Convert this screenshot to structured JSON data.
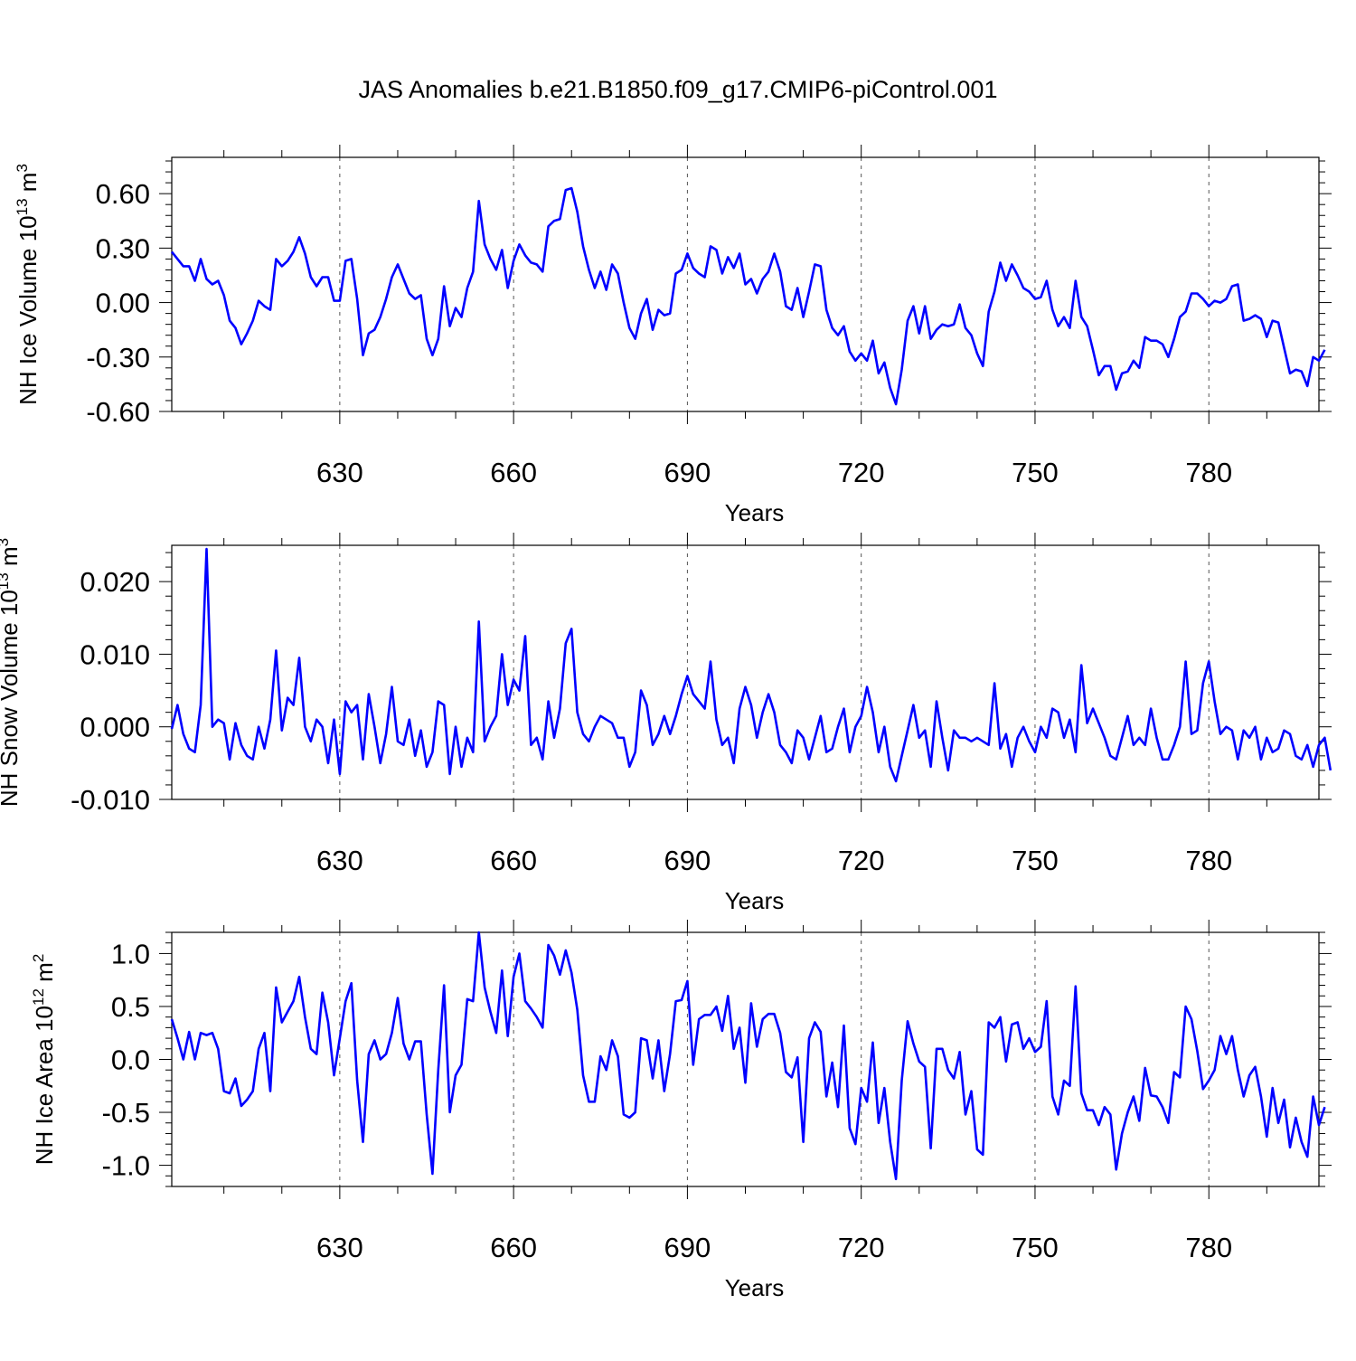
{
  "title": "JAS Anomalies b.e21.B1850.f09_g17.CMIP6-piControl.001",
  "colors": {
    "line": "#0000ff",
    "axis": "#000000",
    "grid": "#555555"
  },
  "chart_data": [
    {
      "type": "line",
      "ylabel_main": "NH Ice Volume 10",
      "ylabel_exp": "13",
      "ylabel_unit": "m",
      "ylabel_unit_exp": "3",
      "xlabel": "Years",
      "xlim": [
        601,
        799
      ],
      "ylim": [
        -0.6,
        0.8
      ],
      "yticks": [
        -0.6,
        -0.3,
        0.0,
        0.3,
        0.6
      ],
      "yticklabels": [
        "-0.60",
        "-0.30",
        "0.00",
        "0.30",
        "0.60"
      ],
      "xticks": [
        630,
        660,
        690,
        720,
        750,
        780
      ],
      "xticklabels": [
        "630",
        "660",
        "690",
        "720",
        "750",
        "780"
      ],
      "x_start": 601,
      "values": [
        0.28,
        0.24,
        0.2,
        0.2,
        0.12,
        0.24,
        0.13,
        0.1,
        0.12,
        0.04,
        -0.1,
        -0.14,
        -0.23,
        -0.17,
        -0.1,
        0.01,
        -0.02,
        -0.04,
        0.24,
        0.2,
        0.23,
        0.28,
        0.36,
        0.27,
        0.14,
        0.09,
        0.14,
        0.14,
        0.01,
        0.01,
        0.23,
        0.24,
        0.02,
        -0.29,
        -0.17,
        -0.15,
        -0.08,
        0.02,
        0.14,
        0.21,
        0.13,
        0.05,
        0.02,
        0.04,
        -0.2,
        -0.29,
        -0.2,
        0.09,
        -0.13,
        -0.03,
        -0.08,
        0.08,
        0.17,
        0.56,
        0.32,
        0.24,
        0.18,
        0.29,
        0.08,
        0.23,
        0.32,
        0.26,
        0.22,
        0.21,
        0.17,
        0.42,
        0.45,
        0.46,
        0.62,
        0.63,
        0.5,
        0.31,
        0.18,
        0.08,
        0.17,
        0.07,
        0.21,
        0.16,
        0.0,
        -0.14,
        -0.2,
        -0.06,
        0.02,
        -0.15,
        -0.04,
        -0.07,
        -0.06,
        0.16,
        0.18,
        0.27,
        0.19,
        0.16,
        0.14,
        0.31,
        0.29,
        0.16,
        0.25,
        0.19,
        0.27,
        0.1,
        0.13,
        0.05,
        0.13,
        0.17,
        0.27,
        0.17,
        -0.02,
        -0.04,
        0.08,
        -0.08,
        0.06,
        0.21,
        0.2,
        -0.04,
        -0.14,
        -0.18,
        -0.13,
        -0.27,
        -0.32,
        -0.28,
        -0.32,
        -0.21,
        -0.39,
        -0.33,
        -0.47,
        -0.56,
        -0.37,
        -0.1,
        -0.02,
        -0.17,
        -0.02,
        -0.2,
        -0.15,
        -0.12,
        -0.13,
        -0.12,
        -0.01,
        -0.14,
        -0.18,
        -0.28,
        -0.35,
        -0.05,
        0.06,
        0.22,
        0.12,
        0.21,
        0.15,
        0.08,
        0.06,
        0.02,
        0.03,
        0.12,
        -0.04,
        -0.13,
        -0.08,
        -0.14,
        0.12,
        -0.08,
        -0.13,
        -0.26,
        -0.4,
        -0.35,
        -0.35,
        -0.48,
        -0.39,
        -0.38,
        -0.32,
        -0.36,
        -0.19,
        -0.21,
        -0.21,
        -0.23,
        -0.3,
        -0.2,
        -0.08,
        -0.05,
        0.05,
        0.05,
        0.02,
        -0.02,
        0.01,
        0.0,
        0.02,
        0.09,
        0.1,
        -0.1,
        -0.09,
        -0.07,
        -0.09,
        -0.19,
        -0.1,
        -0.11,
        -0.25,
        -0.39,
        -0.37,
        -0.38,
        -0.46,
        -0.3,
        -0.32,
        -0.26
      ]
    },
    {
      "type": "line",
      "ylabel_main": "NH Snow Volume 10",
      "ylabel_exp": "13",
      "ylabel_unit": "m",
      "ylabel_unit_exp": "3",
      "xlabel": "Years",
      "xlim": [
        601,
        799
      ],
      "ylim": [
        -0.01,
        0.025
      ],
      "yticks": [
        -0.01,
        0.0,
        0.01,
        0.02
      ],
      "yticklabels": [
        "-0.010",
        "0.000",
        "0.010",
        "0.020"
      ],
      "xticks": [
        630,
        660,
        690,
        720,
        750,
        780
      ],
      "xticklabels": [
        "630",
        "660",
        "690",
        "720",
        "750",
        "780"
      ],
      "x_start": 601,
      "values": [
        -0.0003,
        0.003,
        -0.001,
        -0.003,
        -0.0035,
        0.003,
        0.0245,
        0.0,
        0.001,
        0.0005,
        -0.0045,
        0.0005,
        -0.0025,
        -0.004,
        -0.0045,
        0.0,
        -0.003,
        0.001,
        0.0105,
        -0.0005,
        0.004,
        0.003,
        0.0095,
        0.0,
        -0.002,
        0.001,
        0.0,
        -0.005,
        0.001,
        -0.0065,
        0.0035,
        0.002,
        0.003,
        -0.0045,
        0.0045,
        0.0,
        -0.005,
        -0.001,
        0.0055,
        -0.002,
        -0.0025,
        0.001,
        -0.004,
        -0.0005,
        -0.0055,
        -0.0035,
        0.0035,
        0.003,
        -0.0065,
        0.0,
        -0.0055,
        -0.0015,
        -0.0035,
        0.0145,
        -0.002,
        0.0,
        0.0015,
        0.01,
        0.003,
        0.0065,
        0.005,
        0.0125,
        -0.0025,
        -0.0015,
        -0.0045,
        0.0035,
        -0.0015,
        0.0025,
        0.0115,
        0.0135,
        0.002,
        -0.001,
        -0.002,
        0.0,
        0.0015,
        0.001,
        0.0005,
        -0.0015,
        -0.0015,
        -0.0055,
        -0.0035,
        0.005,
        0.003,
        -0.0025,
        -0.001,
        0.0015,
        -0.001,
        0.0015,
        0.0045,
        0.007,
        0.0045,
        0.0035,
        0.0025,
        0.009,
        0.001,
        -0.0025,
        -0.0015,
        -0.005,
        0.0025,
        0.0055,
        0.003,
        -0.0015,
        0.002,
        0.0045,
        0.002,
        -0.0025,
        -0.0035,
        -0.005,
        -0.0005,
        -0.0015,
        -0.0045,
        -0.0015,
        0.0015,
        -0.0035,
        -0.003,
        0.0,
        0.0025,
        -0.0035,
        0.0,
        0.0015,
        0.0055,
        0.002,
        -0.0035,
        0.0,
        -0.0055,
        -0.0075,
        -0.004,
        -0.0005,
        0.003,
        -0.0015,
        -0.0005,
        -0.0055,
        0.0035,
        -0.0015,
        -0.006,
        -0.0005,
        -0.0015,
        -0.0015,
        -0.002,
        -0.0015,
        -0.002,
        -0.0025,
        0.006,
        -0.003,
        -0.001,
        -0.0055,
        -0.0015,
        0.0,
        -0.002,
        -0.0035,
        0.0,
        -0.0015,
        0.0025,
        0.002,
        -0.0015,
        0.001,
        -0.0035,
        0.0085,
        0.0005,
        0.0025,
        0.0005,
        -0.0015,
        -0.004,
        -0.0045,
        -0.0015,
        0.0015,
        -0.0025,
        -0.0015,
        -0.0025,
        0.0025,
        -0.0015,
        -0.0045,
        -0.0045,
        -0.0025,
        0.0,
        0.009,
        -0.001,
        -0.0005,
        0.006,
        0.009,
        0.0035,
        -0.001,
        0.0,
        -0.0005,
        -0.0045,
        -0.0005,
        -0.0015,
        0.0,
        -0.0045,
        -0.0015,
        -0.0035,
        -0.003,
        -0.0005,
        -0.001,
        -0.004,
        -0.0045,
        -0.0025,
        -0.0055,
        -0.0025,
        -0.0015,
        -0.006
      ]
    },
    {
      "type": "line",
      "ylabel_main": "NH Ice Area 10",
      "ylabel_exp": "12",
      "ylabel_unit": "m",
      "ylabel_unit_exp": "2",
      "xlabel": "Years",
      "xlim": [
        601,
        799
      ],
      "ylim": [
        -1.2,
        1.2
      ],
      "yticks": [
        -1.0,
        -0.5,
        0.0,
        0.5,
        1.0
      ],
      "yticklabels": [
        "-1.0",
        "-0.5",
        "0.0",
        "0.5",
        "1.0"
      ],
      "xticks": [
        630,
        660,
        690,
        720,
        750,
        780
      ],
      "xticklabels": [
        "630",
        "660",
        "690",
        "720",
        "750",
        "780"
      ],
      "x_start": 601,
      "values": [
        0.38,
        0.2,
        0.0,
        0.26,
        0.0,
        0.25,
        0.23,
        0.25,
        0.1,
        -0.3,
        -0.32,
        -0.18,
        -0.44,
        -0.38,
        -0.3,
        0.1,
        0.25,
        -0.3,
        0.68,
        0.35,
        0.45,
        0.55,
        0.78,
        0.4,
        0.1,
        0.05,
        0.63,
        0.35,
        -0.15,
        0.2,
        0.55,
        0.72,
        -0.2,
        -0.78,
        0.05,
        0.18,
        0.0,
        0.05,
        0.25,
        0.58,
        0.15,
        0.0,
        0.17,
        0.17,
        -0.52,
        -1.08,
        -0.1,
        0.7,
        -0.5,
        -0.15,
        -0.05,
        0.57,
        0.55,
        1.2,
        0.68,
        0.45,
        0.25,
        0.84,
        0.22,
        0.78,
        1.0,
        0.55,
        0.48,
        0.4,
        0.3,
        1.08,
        0.98,
        0.8,
        1.03,
        0.82,
        0.47,
        -0.15,
        -0.4,
        -0.4,
        0.03,
        -0.1,
        0.18,
        0.03,
        -0.52,
        -0.55,
        -0.5,
        0.2,
        0.18,
        -0.18,
        0.18,
        -0.3,
        0.05,
        0.55,
        0.56,
        0.74,
        -0.05,
        0.38,
        0.42,
        0.42,
        0.5,
        0.27,
        0.6,
        0.1,
        0.3,
        -0.22,
        0.53,
        0.12,
        0.38,
        0.43,
        0.43,
        0.25,
        -0.12,
        -0.17,
        0.02,
        -0.78,
        0.2,
        0.35,
        0.26,
        -0.35,
        -0.03,
        -0.45,
        0.32,
        -0.65,
        -0.8,
        -0.27,
        -0.4,
        0.16,
        -0.6,
        -0.27,
        -0.78,
        -1.13,
        -0.2,
        0.36,
        0.15,
        -0.02,
        -0.07,
        -0.84,
        0.1,
        0.1,
        -0.1,
        -0.18,
        0.07,
        -0.52,
        -0.3,
        -0.85,
        -0.9,
        0.35,
        0.3,
        0.4,
        -0.02,
        0.33,
        0.35,
        0.1,
        0.2,
        0.07,
        0.12,
        0.55,
        -0.35,
        -0.52,
        -0.2,
        -0.25,
        0.69,
        -0.32,
        -0.48,
        -0.48,
        -0.62,
        -0.45,
        -0.52,
        -1.04,
        -0.7,
        -0.5,
        -0.35,
        -0.58,
        -0.08,
        -0.34,
        -0.35,
        -0.45,
        -0.6,
        -0.12,
        -0.17,
        0.5,
        0.38,
        0.08,
        -0.28,
        -0.2,
        -0.1,
        0.22,
        0.05,
        0.22,
        -0.1,
        -0.35,
        -0.15,
        -0.07,
        -0.35,
        -0.73,
        -0.27,
        -0.6,
        -0.38,
        -0.83,
        -0.55,
        -0.78,
        -0.92,
        -0.35,
        -0.62,
        -0.45
      ]
    }
  ]
}
